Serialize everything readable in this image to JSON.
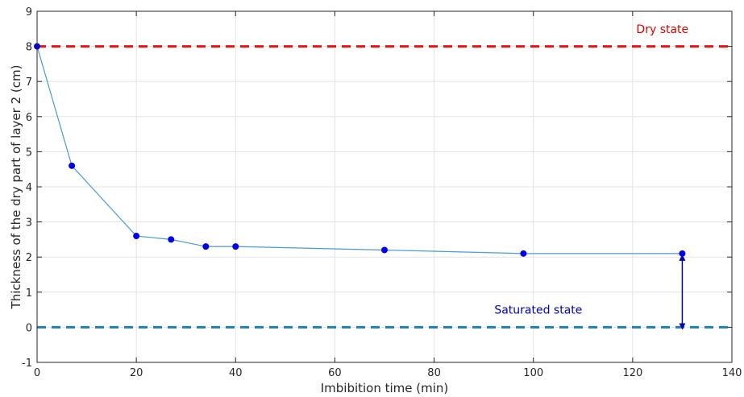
{
  "chart_data": {
    "type": "line",
    "xlabel": "Imbibition time (min)",
    "ylabel": "Thickness of the dry part of layer 2 (cm)",
    "xlim": [
      0,
      140
    ],
    "ylim": [
      -1,
      9
    ],
    "xticks": [
      0,
      20,
      40,
      60,
      80,
      100,
      120,
      140
    ],
    "yticks": [
      -1,
      0,
      1,
      2,
      3,
      4,
      5,
      6,
      7,
      8,
      9
    ],
    "grid": true,
    "series": [
      {
        "x": [
          0,
          7,
          20,
          27,
          34,
          40,
          70,
          98,
          130
        ],
        "y": [
          8,
          4.6,
          2.6,
          2.5,
          2.3,
          2.3,
          2.2,
          2.1,
          2.1
        ],
        "color": "#4a9ad4",
        "marker_color": "#0000ee"
      }
    ],
    "reference_lines": [
      {
        "y": 8,
        "label": "Dry state",
        "color": "#ee1111",
        "label_color": "#dd0000",
        "label_x": 126,
        "label_y": 8.5
      },
      {
        "y": 0,
        "label": "Saturated state",
        "color": "#1e7fb4",
        "label_color": "#0000bb",
        "label_x": 101,
        "label_y": 0.5
      }
    ],
    "annotation_arrow": {
      "x": 130,
      "y_from": 0,
      "y_to": 2.1,
      "color": "#0000bb"
    }
  }
}
